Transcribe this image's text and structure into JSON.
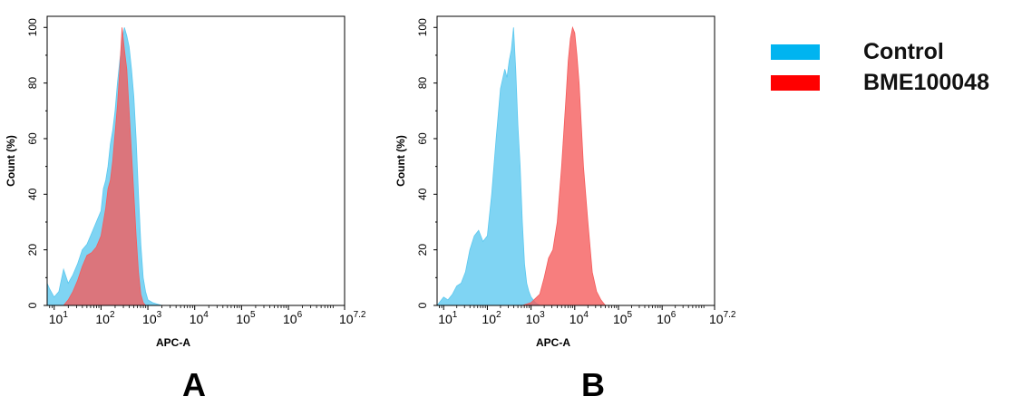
{
  "chart_data": [
    {
      "type": "area",
      "panel_label": "A",
      "xlabel": "APC-A",
      "ylabel": "Count  (%)",
      "xscale": "log10",
      "xlim": [
        0.85,
        7.2
      ],
      "ylim": [
        0,
        104
      ],
      "xticks": [
        {
          "value": 1,
          "base": "10",
          "exp": "1"
        },
        {
          "value": 2,
          "base": "10",
          "exp": "2"
        },
        {
          "value": 3,
          "base": "10",
          "exp": "3"
        },
        {
          "value": 4,
          "base": "10",
          "exp": "4"
        },
        {
          "value": 5,
          "base": "10",
          "exp": "5"
        },
        {
          "value": 6,
          "base": "10",
          "exp": "6"
        },
        {
          "value": 7.2,
          "base": "10",
          "exp": "7.2"
        }
      ],
      "yticks": [
        0,
        20,
        40,
        60,
        80,
        100
      ],
      "series": [
        {
          "name": "Control",
          "color": "#5bc8ef",
          "x": [
            0.85,
            0.9,
            1.0,
            1.1,
            1.2,
            1.3,
            1.4,
            1.5,
            1.6,
            1.7,
            1.8,
            1.9,
            2.0,
            2.05,
            2.1,
            2.15,
            2.2,
            2.25,
            2.3,
            2.35,
            2.4,
            2.45,
            2.5,
            2.55,
            2.6,
            2.65,
            2.7,
            2.75,
            2.8,
            2.85,
            2.9,
            2.95,
            3.0,
            3.1,
            3.2,
            3.3,
            3.5,
            4.0,
            4.5,
            5.0,
            6.0,
            7.2
          ],
          "y": [
            8,
            6,
            3,
            5,
            13,
            8,
            11,
            15,
            20,
            22,
            26,
            30,
            34,
            42,
            45,
            50,
            58,
            63,
            70,
            80,
            88,
            95,
            100,
            97,
            93,
            85,
            75,
            60,
            40,
            22,
            10,
            5,
            2,
            1,
            0.5,
            0,
            0,
            0,
            0,
            0,
            0,
            0
          ]
        },
        {
          "name": "BME100048",
          "color": "#f55a5a",
          "x": [
            0.85,
            0.9,
            1.0,
            1.1,
            1.2,
            1.3,
            1.4,
            1.5,
            1.6,
            1.7,
            1.8,
            1.9,
            2.0,
            2.05,
            2.1,
            2.15,
            2.2,
            2.25,
            2.3,
            2.35,
            2.4,
            2.45,
            2.5,
            2.55,
            2.6,
            2.65,
            2.7,
            2.75,
            2.8,
            2.85,
            2.9,
            2.95,
            3.0,
            3.1,
            3.5,
            4.0,
            4.5,
            5.0,
            6.0,
            7.2
          ],
          "y": [
            0,
            0,
            0,
            0,
            0,
            2,
            5,
            9,
            14,
            18,
            19,
            21,
            25,
            30,
            35,
            42,
            45,
            52,
            62,
            72,
            85,
            100,
            92,
            85,
            70,
            55,
            40,
            25,
            12,
            4,
            1,
            0,
            0,
            0,
            0,
            0,
            0,
            0,
            0,
            0
          ]
        }
      ]
    },
    {
      "type": "area",
      "panel_label": "B",
      "xlabel": "APC-A",
      "ylabel": "Count  (%)",
      "xscale": "log10",
      "xlim": [
        0.85,
        7.2
      ],
      "ylim": [
        0,
        104
      ],
      "xticks": [
        {
          "value": 1,
          "base": "10",
          "exp": "1"
        },
        {
          "value": 2,
          "base": "10",
          "exp": "2"
        },
        {
          "value": 3,
          "base": "10",
          "exp": "3"
        },
        {
          "value": 4,
          "base": "10",
          "exp": "4"
        },
        {
          "value": 5,
          "base": "10",
          "exp": "5"
        },
        {
          "value": 6,
          "base": "10",
          "exp": "6"
        },
        {
          "value": 7.2,
          "base": "10",
          "exp": "7.2"
        }
      ],
      "yticks": [
        0,
        20,
        40,
        60,
        80,
        100
      ],
      "series": [
        {
          "name": "Control",
          "color": "#5bc8ef",
          "x": [
            0.85,
            1.0,
            1.1,
            1.2,
            1.3,
            1.4,
            1.5,
            1.6,
            1.7,
            1.8,
            1.9,
            2.0,
            2.1,
            2.2,
            2.3,
            2.4,
            2.45,
            2.5,
            2.55,
            2.6,
            2.65,
            2.7,
            2.75,
            2.8,
            2.85,
            2.9,
            2.95,
            3.0,
            3.05,
            3.1,
            3.2,
            3.5,
            4.0,
            5.0,
            6.0,
            7.2
          ],
          "y": [
            0,
            3,
            2,
            4,
            7,
            8,
            12,
            20,
            25,
            27,
            23,
            25,
            40,
            60,
            78,
            85,
            82,
            88,
            92,
            100,
            85,
            65,
            50,
            30,
            15,
            8,
            5,
            3,
            2,
            1,
            0,
            0,
            0,
            0,
            0,
            0
          ]
        },
        {
          "name": "BME100048",
          "color": "#f55a5a",
          "x": [
            0.85,
            2.8,
            3.0,
            3.2,
            3.3,
            3.4,
            3.5,
            3.6,
            3.7,
            3.8,
            3.85,
            3.9,
            3.95,
            4.0,
            4.05,
            4.1,
            4.15,
            4.2,
            4.3,
            4.4,
            4.5,
            4.6,
            4.7,
            5.0,
            7.2
          ],
          "y": [
            0,
            0,
            1,
            4,
            10,
            17,
            20,
            30,
            50,
            75,
            88,
            96,
            100,
            98,
            90,
            80,
            65,
            50,
            30,
            12,
            5,
            2,
            0,
            0,
            0
          ]
        }
      ]
    }
  ],
  "legend": [
    {
      "label": "Control",
      "color": "#00b4f0"
    },
    {
      "label": "BME100048",
      "color": "#ff0000"
    }
  ]
}
